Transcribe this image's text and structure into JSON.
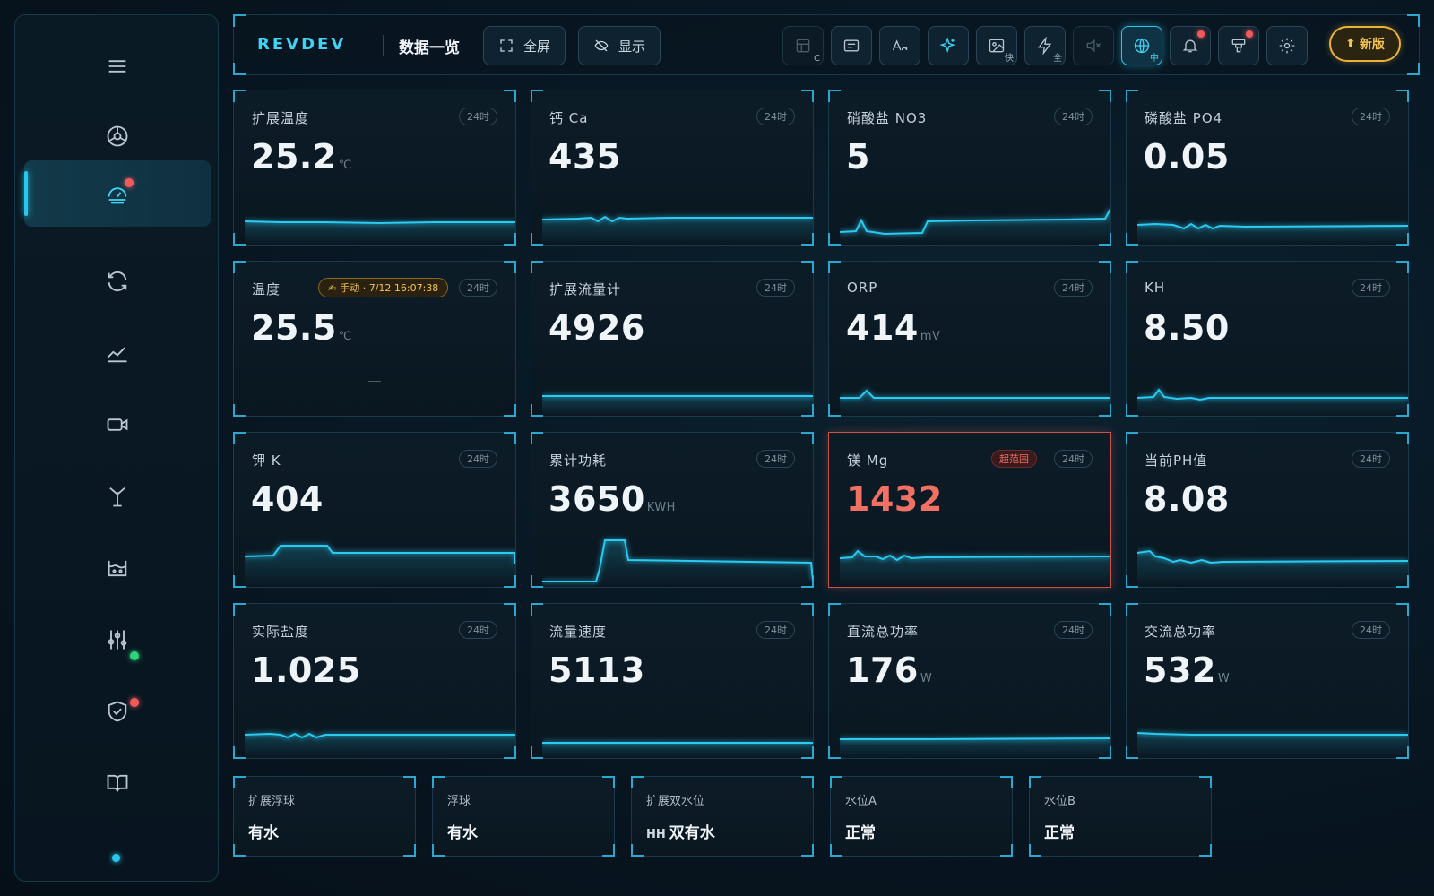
{
  "app": {
    "logo": "REVDEV",
    "page_title": "数据一览",
    "accent": "#27c7ee",
    "alert_color": "#f07064",
    "update_color": "#e9b23a"
  },
  "sidebar": {
    "items": [
      {
        "icon": "menu-icon"
      },
      {
        "icon": "dashboard-icon"
      },
      {
        "icon": "gauge-icon",
        "active": true,
        "badge": "red"
      },
      {
        "icon": "refresh-icon"
      },
      {
        "icon": "chart-line-icon"
      },
      {
        "icon": "camera-icon"
      },
      {
        "icon": "antenna-icon"
      },
      {
        "icon": "tank-icon"
      },
      {
        "icon": "sliders-icon",
        "badge": "green"
      },
      {
        "icon": "shield-check-icon",
        "badge": "red"
      },
      {
        "icon": "book-icon"
      }
    ]
  },
  "toolbar": {
    "fullscreen_label": "全屏",
    "display_label": "显示",
    "tools": [
      {
        "icon": "layout-icon",
        "tag": "C",
        "state": "dim"
      },
      {
        "icon": "card-list-icon",
        "tag": ""
      },
      {
        "icon": "font-size-icon",
        "tag": ""
      },
      {
        "icon": "sparkle-icon",
        "tag": "",
        "state": "accent"
      },
      {
        "icon": "image-icon",
        "tag": "快"
      },
      {
        "icon": "lightning-icon",
        "tag": "全"
      },
      {
        "icon": "mute-icon",
        "tag": "",
        "state": "dim"
      },
      {
        "icon": "globe-icon",
        "tag": "中",
        "state": "active"
      },
      {
        "icon": "bell-icon",
        "tag": "",
        "badge": "red"
      },
      {
        "icon": "device-icon",
        "tag": "",
        "badge": "red"
      },
      {
        "icon": "gear-icon",
        "tag": ""
      }
    ],
    "update_label": "新版",
    "update_icon": "arrow-up-icon"
  },
  "cards": [
    {
      "label": "扩展温度",
      "tag": "24时",
      "value": "25.2",
      "unit": "℃"
    },
    {
      "label": "钙 Ca",
      "tag": "24时",
      "value": "435",
      "unit": ""
    },
    {
      "label": "硝酸盐 NO3",
      "tag": "24时",
      "value": "5",
      "unit": ""
    },
    {
      "label": "磷酸盐 PO4",
      "tag": "24时",
      "value": "0.05",
      "unit": ""
    },
    {
      "label": "温度",
      "tag": "24时",
      "value": "25.5",
      "unit": "℃",
      "manual_badge": "手动 · 7/12 16:07:38"
    },
    {
      "label": "扩展流量计",
      "tag": "24时",
      "value": "4926",
      "unit": ""
    },
    {
      "label": "ORP",
      "tag": "24时",
      "value": "414",
      "unit": "mV"
    },
    {
      "label": "KH",
      "tag": "24时",
      "value": "8.50",
      "unit": ""
    },
    {
      "label": "钾 K",
      "tag": "24时",
      "value": "404",
      "unit": ""
    },
    {
      "label": "累计功耗",
      "tag": "24时",
      "value": "3650",
      "unit": "KWH"
    },
    {
      "label": "镁 Mg",
      "tag": "24时",
      "value": "1432",
      "unit": "",
      "alert_badge": "超范围"
    },
    {
      "label": "当前PH值",
      "tag": "24时",
      "value": "8.08",
      "unit": ""
    },
    {
      "label": "实际盐度",
      "tag": "24时",
      "value": "1.025",
      "unit": ""
    },
    {
      "label": "流量速度",
      "tag": "24时",
      "value": "5113",
      "unit": ""
    },
    {
      "label": "直流总功率",
      "tag": "24时",
      "value": "176",
      "unit": "W"
    },
    {
      "label": "交流总功率",
      "tag": "24时",
      "value": "532",
      "unit": "W"
    }
  ],
  "status": [
    {
      "label": "扩展浮球",
      "value": "有水",
      "prefix": ""
    },
    {
      "label": "浮球",
      "value": "有水",
      "prefix": ""
    },
    {
      "label": "扩展双水位",
      "value": "双有水",
      "prefix": "HH"
    },
    {
      "label": "水位A",
      "value": "正常",
      "prefix": ""
    },
    {
      "label": "水位B",
      "value": "正常",
      "prefix": ""
    }
  ]
}
